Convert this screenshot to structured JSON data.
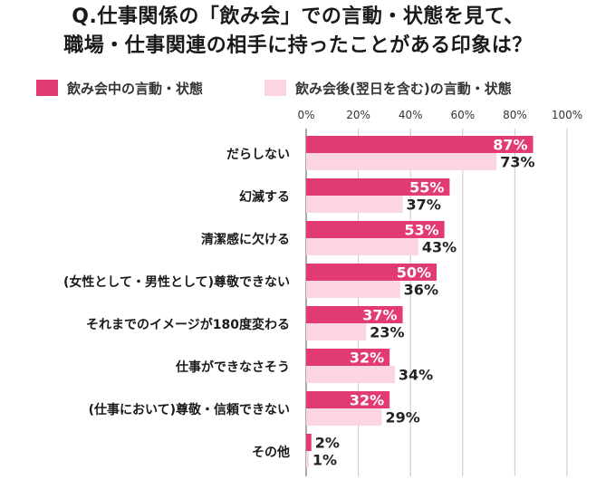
{
  "title_line1": "Q.仕事関係の「飲み会」での言動・状態を見て、",
  "title_line2": "職場・仕事関連の相手に持ったことがある印象は？",
  "colors": {
    "series1": "#e23b72",
    "series2": "#fbd6e1",
    "grid": "#c8c8c8",
    "axis": "#555555",
    "label_on_bar": "#ffffff",
    "label_off_bar": "#222222"
  },
  "chart_data": {
    "type": "bar",
    "orientation": "horizontal",
    "xlim": [
      0,
      100
    ],
    "ticks": [
      "0%",
      "20%",
      "40%",
      "60%",
      "80%",
      "100%"
    ],
    "tick_values": [
      0,
      20,
      40,
      60,
      80,
      100
    ],
    "legend_placement": "top",
    "grid": true,
    "categories": [
      "だらしない",
      "幻滅する",
      "清潔感に欠ける",
      "(女性として・男性として)尊敬できない",
      "それまでのイメージが180度変わる",
      "仕事ができなさそう",
      "(仕事において)尊敬・信頼できない",
      "その他"
    ],
    "series": [
      {
        "name": "飲み会中の言動・状態",
        "values": [
          87,
          55,
          53,
          50,
          37,
          32,
          32,
          2
        ]
      },
      {
        "name": "飲み会後(翌日を含む)の言動・状態",
        "values": [
          73,
          37,
          43,
          36,
          23,
          34,
          29,
          1
        ]
      }
    ],
    "unit": "%"
  }
}
